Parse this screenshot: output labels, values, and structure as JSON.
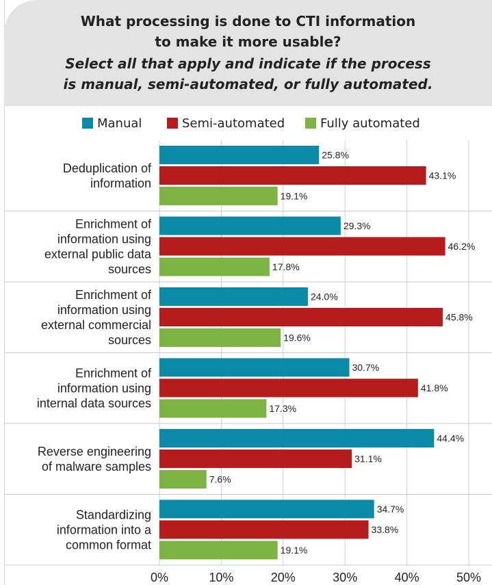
{
  "header": {
    "title": "What processing is done to CTI information to make it more usable?",
    "subtitle": "Select all that apply and indicate if the process is manual, semi-automated, or fully automated."
  },
  "colors": {
    "Manual": "#0a8aa6",
    "Semi-automated": "#b71c1c",
    "Fully automated": "#7cb342"
  },
  "chart_data": {
    "type": "bar",
    "orientation": "horizontal",
    "categories": [
      "Deduplication of information",
      "Enrichment of information using external public data sources",
      "Enrichment of information using external commercial sources",
      "Enrichment of information using internal data sources",
      "Reverse engineering of malware samples",
      "Standardizing information into a common format"
    ],
    "series": [
      {
        "name": "Manual",
        "values": [
          25.8,
          29.3,
          24.0,
          30.7,
          44.4,
          34.7
        ]
      },
      {
        "name": "Semi-automated",
        "values": [
          43.1,
          46.2,
          45.8,
          41.8,
          31.1,
          33.8
        ]
      },
      {
        "name": "Fully automated",
        "values": [
          19.1,
          17.8,
          19.6,
          17.3,
          7.6,
          19.1
        ]
      }
    ],
    "xlim": [
      0,
      50
    ],
    "xticks": [
      "0%",
      "10%",
      "20%",
      "30%",
      "40%",
      "50%"
    ],
    "value_format": "percent-1-decimal",
    "legend_position": "top",
    "grid": true
  }
}
